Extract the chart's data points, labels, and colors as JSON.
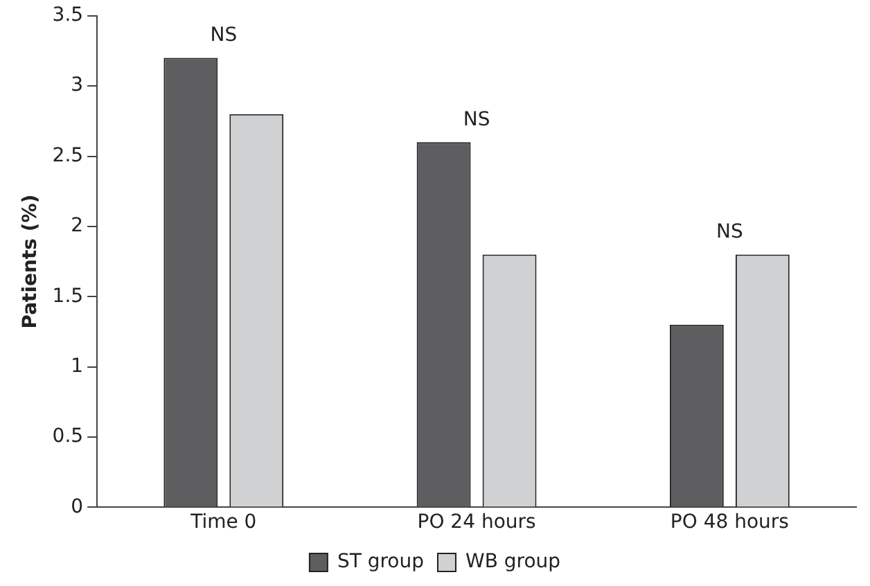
{
  "chart_data": {
    "type": "bar",
    "ylabel": "Patients (%)",
    "categories": [
      "Time 0",
      "PO 24 hours",
      "PO 48 hours"
    ],
    "series": [
      {
        "name": "ST group",
        "color": "#5e5e60",
        "values": [
          3.2,
          2.6,
          1.3
        ]
      },
      {
        "name": "WB group",
        "color": "#d0d1d3",
        "values": [
          2.8,
          1.8,
          1.8
        ]
      }
    ],
    "ylim": [
      0,
      3.5
    ],
    "yticks": [
      0,
      0.5,
      1,
      1.5,
      2,
      2.5,
      3,
      3.5
    ],
    "grid": false,
    "legend": "bottom",
    "annotations": [
      "NS",
      "NS",
      "NS"
    ]
  }
}
